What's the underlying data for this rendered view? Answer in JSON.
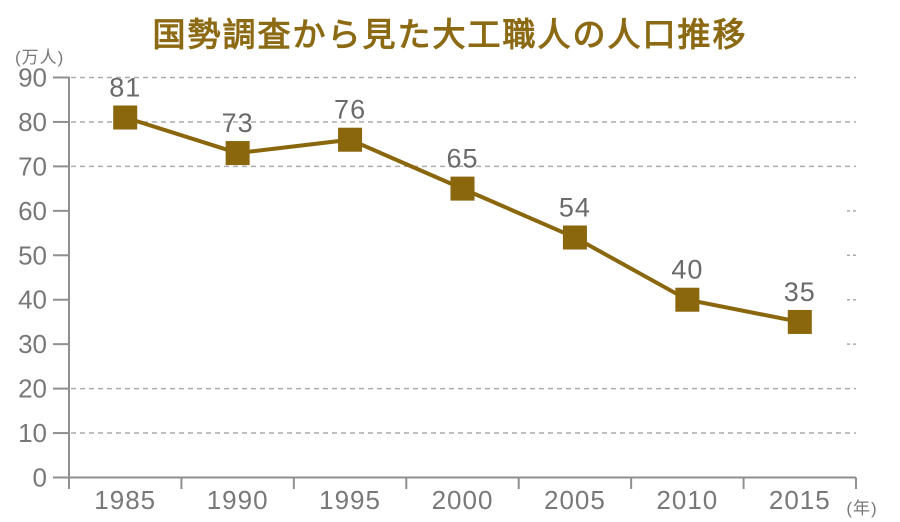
{
  "title": "国勢調査から見た大工職人の人口推移",
  "y_axis_unit": "(万人)",
  "x_axis_unit": "(年)",
  "colors": {
    "title": "#8C6A14",
    "series": "#8A660D",
    "axis": "#8F8F8F",
    "grid": "#ACACAC",
    "axis_label": "#787878",
    "data_label": "#6A6A6A"
  },
  "chart_data": {
    "type": "line",
    "title": "国勢調査から見た大工職人の人口推移",
    "categories": [
      "1985",
      "1990",
      "1995",
      "2000",
      "2005",
      "2010",
      "2015"
    ],
    "values": [
      81,
      73,
      76,
      65,
      54,
      40,
      35
    ],
    "series_name": "大工職人の人口",
    "xlabel": "(年)",
    "ylabel": "(万人)",
    "ylim": [
      0,
      90
    ],
    "ytick_step": 10,
    "yticks": [
      0,
      10,
      20,
      30,
      40,
      50,
      60,
      70,
      80,
      90
    ],
    "marker": "square",
    "legend": "none",
    "grid": "dashed-horizontal",
    "gridlines": {
      "full": [
        10,
        20,
        70,
        80,
        90
      ],
      "right_fragment": [
        30,
        40,
        50,
        60
      ]
    },
    "data_labels_shown": true
  }
}
